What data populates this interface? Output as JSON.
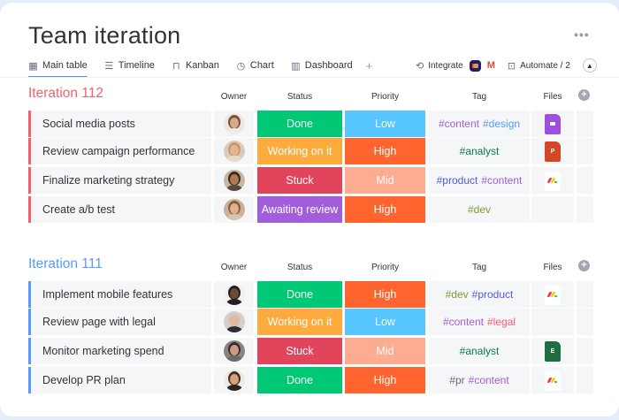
{
  "header": {
    "title": "Team iteration",
    "more_label": "•••"
  },
  "tabs": [
    {
      "label": "Main table",
      "icon": "table-icon",
      "glyph": "▦",
      "active": true
    },
    {
      "label": "Timeline",
      "icon": "timeline-icon",
      "glyph": "☰",
      "active": false
    },
    {
      "label": "Kanban",
      "icon": "kanban-icon",
      "glyph": "⊓",
      "active": false
    },
    {
      "label": "Chart",
      "icon": "chart-icon",
      "glyph": "◷",
      "active": false
    },
    {
      "label": "Dashboard",
      "icon": "dashboard-icon",
      "glyph": "▥",
      "active": false
    }
  ],
  "tab_add_label": "+",
  "toolbar": {
    "integrate_label": "Integrate",
    "integrate_glyph": "⟲",
    "gmail_glyph": "M",
    "automate_label": "Automate / 2",
    "automate_glyph": "⊡",
    "collapse_glyph": "▲"
  },
  "columns": {
    "owner": "Owner",
    "status": "Status",
    "priority": "Priority",
    "tag": "Tag",
    "files": "Files",
    "add": "+"
  },
  "colors": {
    "status": {
      "Done": "#00c875",
      "Working on it": "#fdab3d",
      "Stuck": "#e2445c",
      "Awaiting review": "#a25ddc"
    },
    "priority": {
      "Low": "#57c6ff",
      "High": "#ff642e",
      "Mid": "#fdab91"
    },
    "tags": {
      "#content": "#a25ddc",
      "#design": "#579bfc",
      "#analyst": "#037f4c",
      "#product": "#5559df",
      "#dev": "#7e9c2a",
      "#legal": "#ff5a78",
      "#pr": "#676879"
    }
  },
  "groups": [
    {
      "title": "Iteration 112",
      "color": "#f0626c",
      "rows": [
        {
          "item": "Social media posts",
          "avatar": {
            "skin": "#d8a88a",
            "hair": "#7a5232",
            "shirt": "#f0ebe7",
            "bg": "#ede7e3"
          },
          "status": "Done",
          "priority": "Low",
          "tags": [
            "#content",
            "#design"
          ],
          "file": "video"
        },
        {
          "item": "Review campaign performance",
          "avatar": {
            "skin": "#e5b597",
            "hair": "#c79a62",
            "shirt": "#e8dcc9",
            "bg": "#d9cbbd"
          },
          "status": "Working on it",
          "priority": "High",
          "tags": [
            "#analyst"
          ],
          "file": "ppt"
        },
        {
          "item": "Finalize marketing strategy",
          "avatar": {
            "skin": "#b07a55",
            "hair": "#3a2a20",
            "shirt": "#5a4a3e",
            "bg": "#c8b6a4"
          },
          "status": "Stuck",
          "priority": "Mid",
          "tags": [
            "#product",
            "#content"
          ],
          "file": "monday"
        },
        {
          "item": "Create a/b test",
          "avatar": {
            "skin": "#e0b092",
            "hair": "#8c5d35",
            "shirt": "#d6c3af",
            "bg": "#c9b29a"
          },
          "status": "Awaiting review",
          "priority": "High",
          "tags": [
            "#dev"
          ],
          "file": ""
        }
      ]
    },
    {
      "title": "Iteration 111",
      "color": "#579bfc",
      "rows": [
        {
          "item": "Implement mobile features",
          "avatar": {
            "skin": "#6b4a36",
            "hair": "#2a1d16",
            "shirt": "#1f1f24",
            "bg": "#f1f1f3"
          },
          "status": "Done",
          "priority": "High",
          "tags": [
            "#dev",
            "#product"
          ],
          "file": "monday"
        },
        {
          "item": "Review page with legal",
          "avatar": {
            "skin": "#e0b9a0",
            "hair": "#cfc7c0",
            "shirt": "#2b2e38",
            "bg": "#d7cfc8"
          },
          "status": "Working on it",
          "priority": "Low",
          "tags": [
            "#content",
            "#legal"
          ],
          "file": ""
        },
        {
          "item": "Monitor marketing spend",
          "avatar": {
            "skin": "#c99b82",
            "hair": "#3b2c25",
            "shirt": "#6e6a6a",
            "bg": "#8a8585"
          },
          "status": "Stuck",
          "priority": "Mid",
          "tags": [
            "#analyst"
          ],
          "file": "xls"
        },
        {
          "item": "Develop PR plan",
          "avatar": {
            "skin": "#d7a17d",
            "hair": "#4a2e20",
            "shirt": "#2d2420",
            "bg": "#efe9e4"
          },
          "status": "Done",
          "priority": "High",
          "tags": [
            "#pr",
            "#content"
          ],
          "file": "monday"
        }
      ]
    }
  ]
}
